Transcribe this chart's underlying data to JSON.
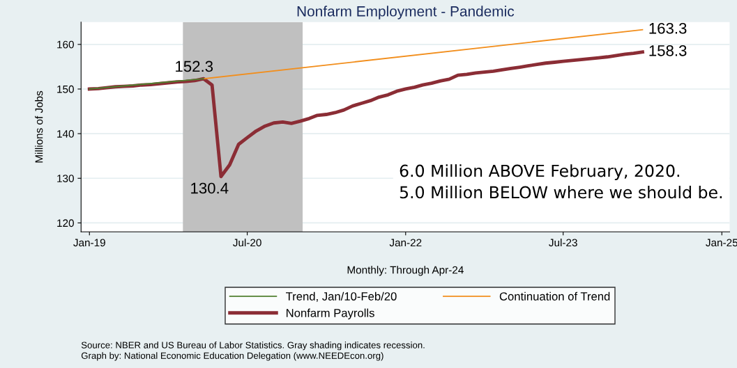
{
  "chart_data": {
    "type": "line",
    "title": "Nonfarm Employment - Pandemic",
    "xlabel": "Monthly: Through Apr-24",
    "ylabel": "Millions of Jobs",
    "xlim": [
      "2018-12-03",
      "2025-01-28"
    ],
    "xticks": [
      {
        "value": "2019-01-01",
        "label": "Jan-19"
      },
      {
        "value": "2020-07-01",
        "label": "Jul-20"
      },
      {
        "value": "2022-01-01",
        "label": "Jan-22"
      },
      {
        "value": "2023-07-01",
        "label": "Jul-23"
      },
      {
        "value": "2025-01-01",
        "label": "Jan-25"
      }
    ],
    "ylim": [
      118,
      165
    ],
    "yticks": [
      120,
      130,
      140,
      150,
      160
    ],
    "grid": "y",
    "legend": "bottom",
    "line_style": "solid",
    "marker": "none",
    "series": [
      {
        "name": "Trend, Jan/10-Feb/20",
        "color": "#4f7f2f",
        "x": [
          "2019-01",
          "2020-02"
        ],
        "values": [
          150.0,
          152.3
        ]
      },
      {
        "name": "Continuation of Trend",
        "color": "#f28e1c",
        "x": [
          "2020-02",
          "2024-04"
        ],
        "values": [
          152.3,
          163.3
        ]
      },
      {
        "name": "Nonfarm Payrolls",
        "color": "#8b2d35",
        "x": [
          "2019-01",
          "2019-02",
          "2019-03",
          "2019-04",
          "2019-05",
          "2019-06",
          "2019-07",
          "2019-08",
          "2019-09",
          "2019-10",
          "2019-11",
          "2019-12",
          "2020-01",
          "2020-02",
          "2020-03",
          "2020-04",
          "2020-05",
          "2020-06",
          "2020-07",
          "2020-08",
          "2020-09",
          "2020-10",
          "2020-11",
          "2020-12",
          "2021-01",
          "2021-02",
          "2021-03",
          "2021-04",
          "2021-05",
          "2021-06",
          "2021-07",
          "2021-08",
          "2021-09",
          "2021-10",
          "2021-11",
          "2021-12",
          "2022-01",
          "2022-02",
          "2022-03",
          "2022-04",
          "2022-05",
          "2022-06",
          "2022-07",
          "2022-08",
          "2022-09",
          "2022-10",
          "2022-11",
          "2022-12",
          "2023-01",
          "2023-02",
          "2023-03",
          "2023-04",
          "2023-05",
          "2023-06",
          "2023-07",
          "2023-08",
          "2023-09",
          "2023-10",
          "2023-11",
          "2023-12",
          "2024-01",
          "2024-02",
          "2024-03",
          "2024-04"
        ],
        "values": [
          150.0,
          150.1,
          150.3,
          150.5,
          150.6,
          150.7,
          150.9,
          151.0,
          151.2,
          151.4,
          151.6,
          151.7,
          151.9,
          152.3,
          150.9,
          130.4,
          133.0,
          137.6,
          139.1,
          140.6,
          141.7,
          142.4,
          142.6,
          142.3,
          142.8,
          143.4,
          144.1,
          144.3,
          144.7,
          145.3,
          146.2,
          146.8,
          147.4,
          148.2,
          148.7,
          149.5,
          150.0,
          150.4,
          150.9,
          151.3,
          151.8,
          152.2,
          153.1,
          153.3,
          153.6,
          153.8,
          154.0,
          154.3,
          154.6,
          154.9,
          155.2,
          155.5,
          155.8,
          156.0,
          156.2,
          156.4,
          156.6,
          156.8,
          157.0,
          157.2,
          157.5,
          157.8,
          158.0,
          158.3
        ]
      }
    ],
    "bands": [
      {
        "axis": "x",
        "from": "2019-11-21",
        "to": "2021-01-09",
        "color": "#c0c0c0"
      }
    ],
    "annotations": [
      {
        "text": "152.3",
        "x": "2020-02",
        "y": 152.3
      },
      {
        "text": "130.4",
        "x": "2020-04",
        "y": 130.4
      },
      {
        "text": "163.3",
        "x": "2024-04",
        "y": 163.3
      },
      {
        "text": "158.3",
        "x": "2024-04",
        "y": 158.3
      },
      "6.0 Million ABOVE February, 2020.\n5.0 Million BELOW where we should be.",
      "Source: NBER and US Bureau of Labor Statistics. Gray shading indicates recession.\nGraph by: National Economic Education Delegation (www.NEEDEcon.org)"
    ]
  }
}
